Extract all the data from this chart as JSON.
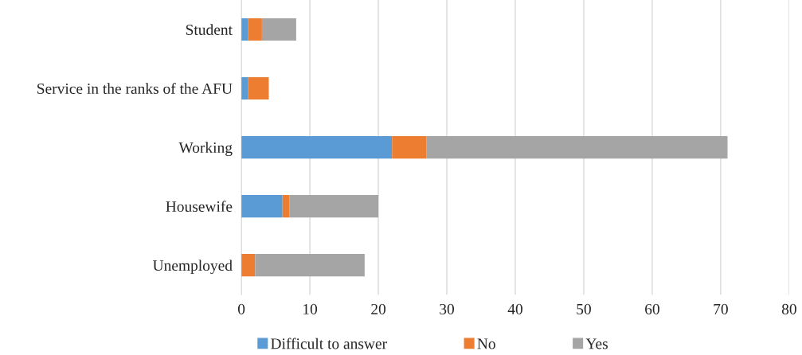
{
  "chart_data": {
    "type": "bar",
    "orientation": "horizontal",
    "stacked": true,
    "categories": [
      "Student",
      "Service in the ranks of the AFU",
      "Working",
      "Housewife",
      "Unemployed"
    ],
    "series": [
      {
        "name": "Difficult to answer",
        "color": "#5b9bd5",
        "values": [
          1,
          1,
          22,
          6,
          null
        ]
      },
      {
        "name": "No",
        "color": "#ed7d31",
        "values": [
          2,
          3,
          5,
          1,
          2
        ]
      },
      {
        "name": "Yes",
        "color": "#a5a5a5",
        "values": [
          5,
          null,
          44,
          13,
          16
        ]
      }
    ],
    "xlim": [
      0,
      80
    ],
    "xticks": [
      0,
      10,
      20,
      30,
      40,
      50,
      60,
      70,
      80
    ],
    "grid": "x",
    "legend": "bottom"
  }
}
